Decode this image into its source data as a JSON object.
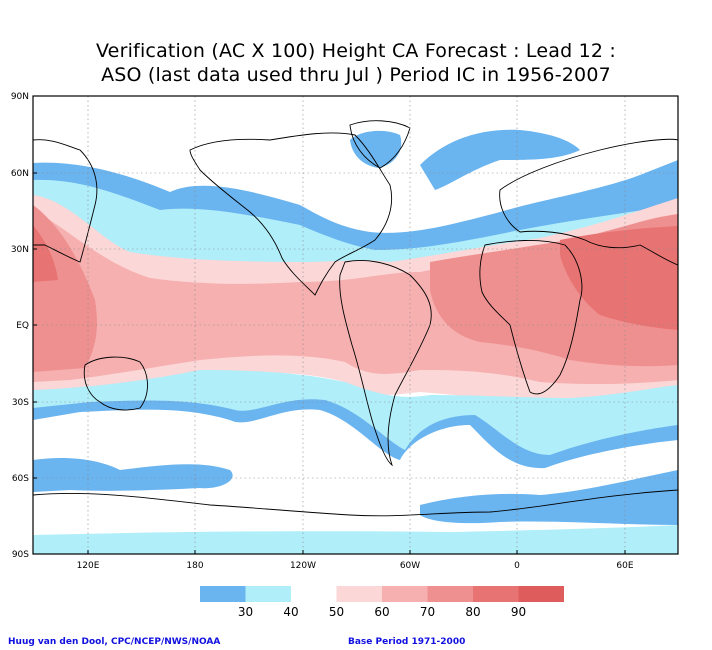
{
  "title_line1": "Verification (AC X 100) Height CA Forecast : Lead 12 :",
  "title_line2": "ASO (last data used thru Jul ) Period IC in 1956-2007",
  "lat_labels": [
    "90N",
    "60N",
    "30N",
    "EQ",
    "30S",
    "60S",
    "90S"
  ],
  "lon_labels": [
    "120E",
    "180",
    "120W",
    "60W",
    "0",
    "60E"
  ],
  "colorbar": {
    "labels": [
      "30",
      "40",
      "50",
      "60",
      "70",
      "80",
      "90"
    ],
    "colors": [
      "#6ab4f0",
      "#b0eefa",
      "#ffffff",
      "#fbd7d7",
      "#f6b0b0",
      "#ef9090",
      "#e87373",
      "#df5c5c"
    ]
  },
  "credit_left": "Huug van den Dool, CPC/NCEP/NWS/NOAA",
  "credit_right": "Base Period 1971-2000"
}
